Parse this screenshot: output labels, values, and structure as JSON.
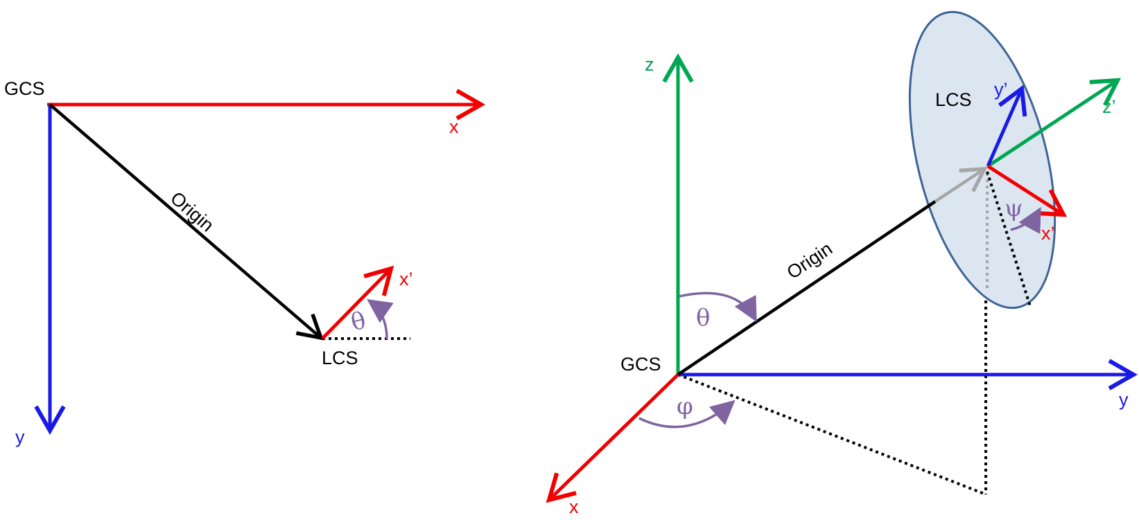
{
  "colors": {
    "red": "#f20000",
    "blue": "#1a1ae6",
    "green": "#00a651",
    "black": "#000000",
    "gray": "#a6a6a6",
    "purple": "#8064a2",
    "disk_fill": "#dce6f1",
    "disk_stroke": "#3d6494"
  },
  "left_diagram": {
    "gcs_label": "GCS",
    "x_label": "x",
    "y_label": "y",
    "origin_label": "Origin",
    "lcs_label": "LCS",
    "xprime_label": "x’",
    "theta_label": "θ"
  },
  "right_diagram": {
    "gcs_label": "GCS",
    "x_label": "x",
    "y_label": "y",
    "z_label": "z",
    "origin_label": "Origin",
    "lcs_label": "LCS",
    "xprime_label": "x’",
    "yprime_label": "y’",
    "zprime_label": "z’",
    "theta_label": "θ",
    "phi_label": "φ",
    "psi_label": "ψ"
  }
}
